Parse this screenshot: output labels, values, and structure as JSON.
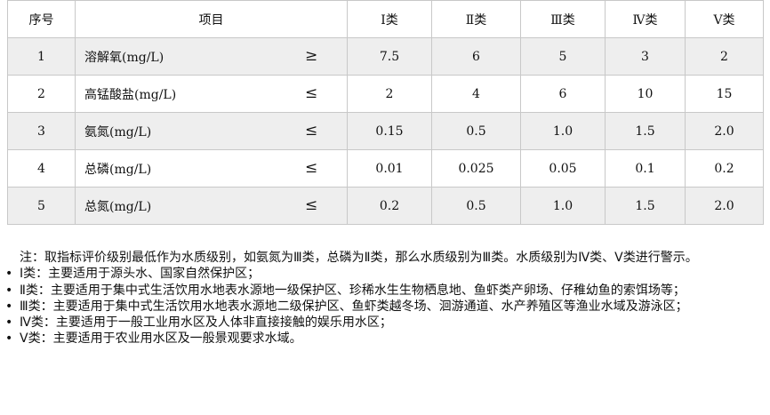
{
  "table": {
    "headers": [
      "序号",
      "项目",
      "Ⅰ类",
      "Ⅱ类",
      "Ⅲ类",
      "Ⅳ类",
      "Ⅴ类"
    ],
    "rows": [
      {
        "no": "1",
        "item": "溶解氧(mg/L)",
        "cmp": "≥",
        "values": [
          "7.5",
          "6",
          "5",
          "3",
          "2"
        ]
      },
      {
        "no": "2",
        "item": "高锰酸盐(mg/L)",
        "cmp": "≤",
        "values": [
          "2",
          "4",
          "6",
          "10",
          "15"
        ]
      },
      {
        "no": "3",
        "item": "氨氮(mg/L)",
        "cmp": "≤",
        "values": [
          "0.15",
          "0.5",
          "1.0",
          "1.5",
          "2.0"
        ]
      },
      {
        "no": "4",
        "item": "总磷(mg/L)",
        "cmp": "≤",
        "values": [
          "0.01",
          "0.025",
          "0.05",
          "0.1",
          "0.2"
        ]
      },
      {
        "no": "5",
        "item": "总氮(mg/L)",
        "cmp": "≤",
        "values": [
          "0.2",
          "0.5",
          "1.0",
          "1.5",
          "2.0"
        ]
      }
    ]
  },
  "notes": {
    "intro": "注：取指标评价级别最低作为水质级别，如氨氮为Ⅲ类，总磷为Ⅱ类，那么水质级别为Ⅲ类。水质级别为Ⅳ类、Ⅴ类进行警示。",
    "bullets": [
      "Ⅰ类：主要适用于源头水、国家自然保护区；",
      "Ⅱ类：主要适用于集中式生活饮用水地表水源地一级保护区、珍稀水生生物栖息地、鱼虾类产卵场、仔稚幼鱼的索饵场等；",
      "Ⅲ类：主要适用于集中式生活饮用水地表水源地二级保护区、鱼虾类越冬场、洄游通道、水产养殖区等渔业水域及游泳区；",
      "Ⅳ类：主要适用于一般工业用水区及人体非直接接触的娱乐用水区；",
      "Ⅴ类：主要适用于农业用水区及一般景观要求水域。"
    ]
  }
}
